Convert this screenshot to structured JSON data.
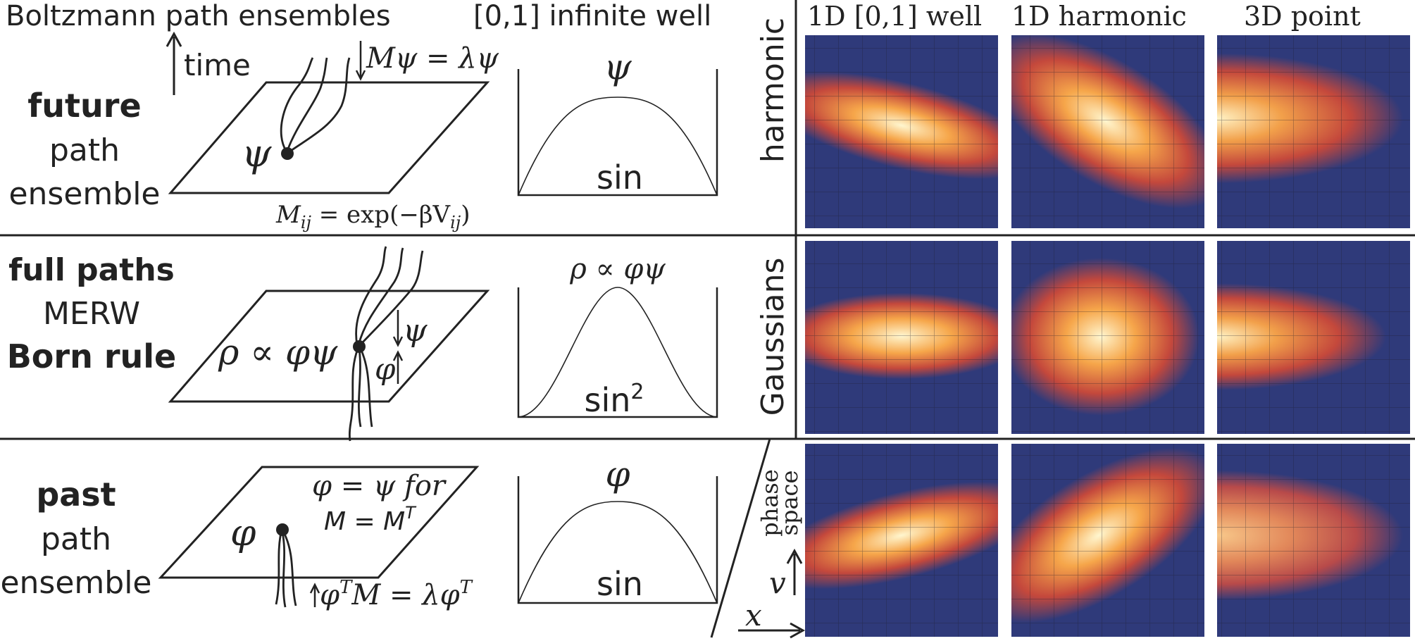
{
  "header": {
    "title": "Boltzmann path ensembles",
    "well": "[0,1] infinite well",
    "col1": "1D [0,1] well",
    "col2": "1D harmonic",
    "col3": "3D point"
  },
  "row_future": {
    "bold": "future",
    "l2": "path",
    "l3": "ensemble",
    "time": "time",
    "eigen": "Mψ = λψ",
    "psi": "ψ",
    "mij": "M",
    "mij_sub": "ij",
    "mij_rest": " = exp(−βV",
    "mij_sub2": "ij",
    "mij_close": ")",
    "plot_label": "ψ",
    "func": "sin",
    "side": "harmonic"
  },
  "row_full": {
    "b1": "full paths",
    "l2": "MERW",
    "b3": "Born rule",
    "rho": "ρ ∝ φψ",
    "psi": "ψ",
    "phi": "φ",
    "plot_label": "ρ ∝ φψ",
    "func": "sin",
    "func_sup": "2",
    "side": "Gaussians"
  },
  "row_past": {
    "bold": "past",
    "l2": "path",
    "l3": "ensemble",
    "phi": "φ",
    "eq1": "φ = ψ for",
    "eq2": "M = M",
    "eq2_sup": "T",
    "eigen_a": "φ",
    "eigen_sup": "T",
    "eigen_b": "M = λφ",
    "eigen_sup2": "T",
    "plot_label": "φ",
    "func": "sin",
    "side1": "phase",
    "side2": "space",
    "axis_v": "v",
    "axis_x": "x"
  },
  "colors": {
    "cold": "#2f3a7a",
    "warm": "#c4483c",
    "hot": "#f6a64a",
    "peak": "#fff6cf"
  }
}
